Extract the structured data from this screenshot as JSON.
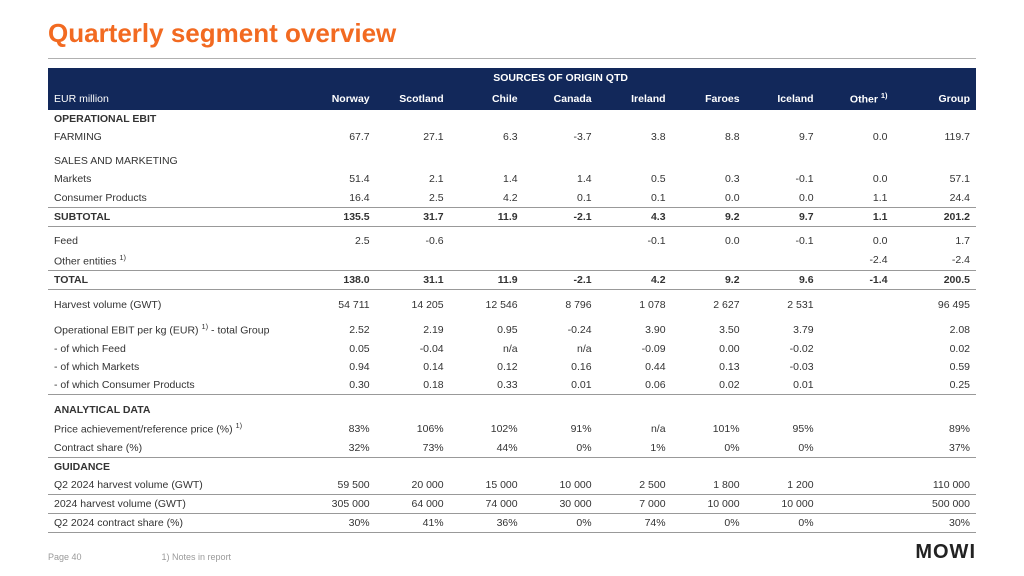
{
  "title": "Quarterly segment overview",
  "title_color": "#f26a21",
  "header_bg": "#12285a",
  "band_label": "SOURCES OF ORIGIN QTD",
  "currency_label": "EUR million",
  "columns": [
    "Norway",
    "Scotland",
    "Chile",
    "Canada",
    "Ireland",
    "Faroes",
    "Iceland",
    "Other",
    "Group"
  ],
  "other_footnote": "1)",
  "sections": {
    "op_ebit": "OPERATIONAL EBIT",
    "sales_mkt": "SALES AND MARKETING",
    "analytical": "ANALYTICAL DATA",
    "guidance": "GUIDANCE"
  },
  "rows": {
    "farming": {
      "label": "FARMING",
      "v": [
        "67.7",
        "27.1",
        "6.3",
        "-3.7",
        "3.8",
        "8.8",
        "9.7",
        "0.0",
        "119.7"
      ]
    },
    "markets": {
      "label": "Markets",
      "v": [
        "51.4",
        "2.1",
        "1.4",
        "1.4",
        "0.5",
        "0.3",
        "-0.1",
        "0.0",
        "57.1"
      ]
    },
    "consumer": {
      "label": "Consumer Products",
      "v": [
        "16.4",
        "2.5",
        "4.2",
        "0.1",
        "0.1",
        "0.0",
        "0.0",
        "1.1",
        "24.4"
      ]
    },
    "subtotal": {
      "label": "SUBTOTAL",
      "v": [
        "135.5",
        "31.7",
        "11.9",
        "-2.1",
        "4.3",
        "9.2",
        "9.7",
        "1.1",
        "201.2"
      ]
    },
    "feed": {
      "label": "Feed",
      "v": [
        "2.5",
        "-0.6",
        "",
        "",
        "-0.1",
        "0.0",
        "-0.1",
        "0.0",
        "1.7"
      ]
    },
    "other_ent": {
      "label": "Other entities",
      "fn": "1)",
      "v": [
        "",
        "",
        "",
        "",
        "",
        "",
        "",
        "-2.4",
        "-2.4"
      ]
    },
    "total": {
      "label": "TOTAL",
      "v": [
        "138.0",
        "31.1",
        "11.9",
        "-2.1",
        "4.2",
        "9.2",
        "9.6",
        "-1.4",
        "200.5"
      ]
    },
    "harvest": {
      "label": "Harvest volume (GWT)",
      "v": [
        "54 711",
        "14 205",
        "12 546",
        "8 796",
        "1 078",
        "2 627",
        "2 531",
        "",
        "96 495"
      ]
    },
    "ebit_kg": {
      "label": "Operational EBIT per kg (EUR)",
      "fn": "1)",
      "suffix": " - total Group",
      "v": [
        "2.52",
        "2.19",
        "0.95",
        "-0.24",
        "3.90",
        "3.50",
        "3.79",
        "",
        "2.08"
      ]
    },
    "of_feed": {
      "label": "- of which Feed",
      "v": [
        "0.05",
        "-0.04",
        "n/a",
        "n/a",
        "-0.09",
        "0.00",
        "-0.02",
        "",
        "0.02"
      ]
    },
    "of_mkts": {
      "label": "- of which Markets",
      "v": [
        "0.94",
        "0.14",
        "0.12",
        "0.16",
        "0.44",
        "0.13",
        "-0.03",
        "",
        "0.59"
      ]
    },
    "of_cp": {
      "label": "- of which Consumer Products",
      "v": [
        "0.30",
        "0.18",
        "0.33",
        "0.01",
        "0.06",
        "0.02",
        "0.01",
        "",
        "0.25"
      ]
    },
    "price": {
      "label": "Price achievement/reference price (%)",
      "fn": "1)",
      "v": [
        "83%",
        "106%",
        "102%",
        "91%",
        "n/a",
        "101%",
        "95%",
        "",
        "89%"
      ]
    },
    "contract": {
      "label": "Contract share (%)",
      "v": [
        "32%",
        "73%",
        "44%",
        "0%",
        "1%",
        "0%",
        "0%",
        "",
        "37%"
      ]
    },
    "q2h": {
      "label": "Q2 2024 harvest volume (GWT)",
      "v": [
        "59 500",
        "20 000",
        "15 000",
        "10 000",
        "2 500",
        "1 800",
        "1 200",
        "",
        "110 000"
      ]
    },
    "y24h": {
      "label": "2024 harvest volume (GWT)",
      "v": [
        "305 000",
        "64 000",
        "74 000",
        "30 000",
        "7 000",
        "10 000",
        "10 000",
        "",
        "500 000"
      ]
    },
    "q2c": {
      "label": "Q2 2024 contract share (%)",
      "v": [
        "30%",
        "41%",
        "36%",
        "0%",
        "74%",
        "0%",
        "0%",
        "",
        "30%"
      ]
    }
  },
  "footer": {
    "page": "Page 40",
    "note": "1) Notes in report"
  },
  "logo": "MOWI"
}
